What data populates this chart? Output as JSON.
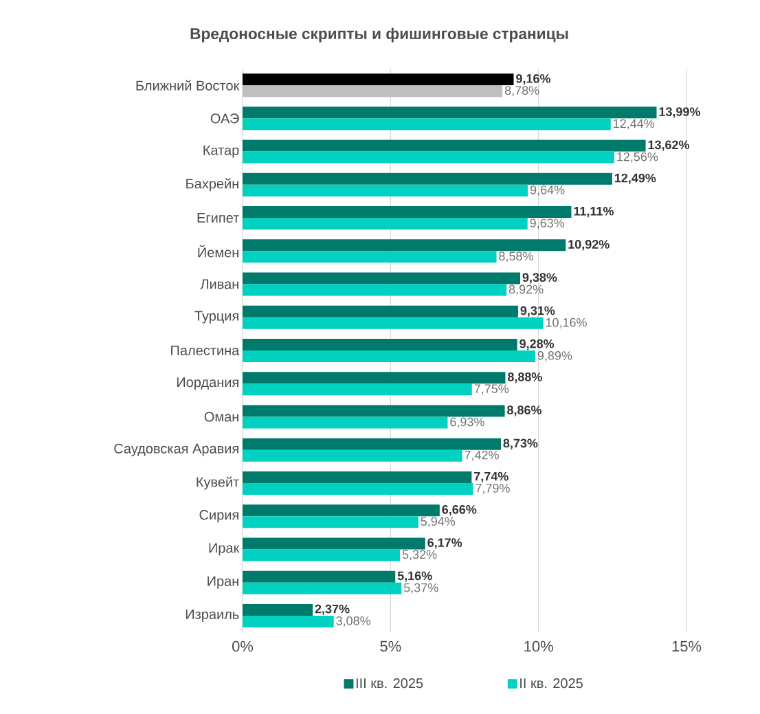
{
  "chart_data": {
    "type": "bar",
    "orientation": "horizontal",
    "title": "Вредоносные скрипты и фишинговые страницы",
    "categories": [
      "Ближний Восток",
      "ОАЭ",
      "Катар",
      "Бахрейн",
      "Египет",
      "Йемен",
      "Ливан",
      "Турция",
      "Палестина",
      "Иордания",
      "Оман",
      "Саудовская Аравия",
      "Кувейт",
      "Сирия",
      "Ирак",
      "Иран",
      "Израиль"
    ],
    "series": [
      {
        "name": "III кв. 2025",
        "color": "#007A6A",
        "colors": [
          "#000000",
          "#007A6A",
          "#007A6A",
          "#007A6A",
          "#007A6A",
          "#007A6A",
          "#007A6A",
          "#007A6A",
          "#007A6A",
          "#007A6A",
          "#007A6A",
          "#007A6A",
          "#007A6A",
          "#007A6A",
          "#007A6A",
          "#007A6A",
          "#007A6A"
        ],
        "values": [
          9.16,
          13.99,
          13.62,
          12.49,
          11.11,
          10.92,
          9.38,
          9.31,
          9.28,
          8.88,
          8.86,
          8.73,
          7.74,
          6.66,
          6.17,
          5.16,
          2.37
        ],
        "value_labels": [
          "9,16%",
          "13,99%",
          "13,62%",
          "12,49%",
          "11,11%",
          "10,92%",
          "9,38%",
          "9,31%",
          "9,28%",
          "8,88%",
          "8,86%",
          "8,73%",
          "7,74%",
          "6,66%",
          "6,17%",
          "5,16%",
          "2,37%"
        ]
      },
      {
        "name": "II кв. 2025",
        "color": "#00D1C1",
        "colors": [
          "#BFBFBF",
          "#00D1C1",
          "#00D1C1",
          "#00D1C1",
          "#00D1C1",
          "#00D1C1",
          "#00D1C1",
          "#00D1C1",
          "#00D1C1",
          "#00D1C1",
          "#00D1C1",
          "#00D1C1",
          "#00D1C1",
          "#00D1C1",
          "#00D1C1",
          "#00D1C1",
          "#00D1C1"
        ],
        "values": [
          8.78,
          12.44,
          12.56,
          9.64,
          9.63,
          8.58,
          8.92,
          10.16,
          9.89,
          7.75,
          6.93,
          7.42,
          7.79,
          5.94,
          5.32,
          5.37,
          3.08
        ],
        "value_labels": [
          "8,78%",
          "12,44%",
          "12,56%",
          "9,64%",
          "9,63%",
          "8,58%",
          "8,92%",
          "10,16%",
          "9,89%",
          "7,75%",
          "6,93%",
          "7,42%",
          "7,79%",
          "5,94%",
          "5,32%",
          "5,37%",
          "3,08%"
        ]
      }
    ],
    "xlim": [
      0,
      15
    ],
    "xticks": [
      {
        "value": 0,
        "label": "0%"
      },
      {
        "value": 5,
        "label": "5%"
      },
      {
        "value": 10,
        "label": "10%"
      },
      {
        "value": 15,
        "label": "15%"
      }
    ],
    "grid": "x",
    "legend": "bottom"
  }
}
